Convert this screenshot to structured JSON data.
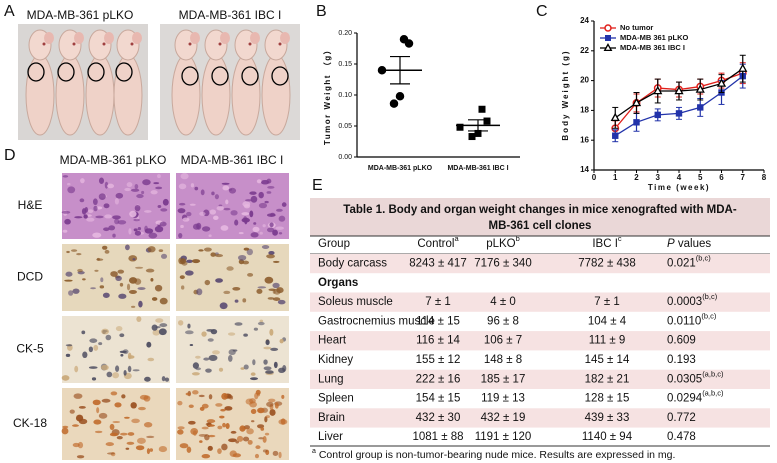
{
  "panels": {
    "a": {
      "label": "A",
      "titles": [
        "MDA-MB-361 pLKO",
        "MDA-MB-361 IBC I"
      ]
    },
    "b": {
      "label": "B"
    },
    "c": {
      "label": "C"
    },
    "d": {
      "label": "D",
      "columns": [
        "MDA-MB-361 pLKO",
        "MDA-MB-361 IBC I"
      ],
      "rows": [
        "H&E",
        "DCD",
        "CK-5",
        "CK-18"
      ]
    },
    "e": {
      "label": "E"
    }
  },
  "chart_data": [
    {
      "type": "strip",
      "ylabel": "Tumor Weight （g）",
      "categories": [
        "MDA-MB-361 pLKO",
        "MDA-MB-361 IBC I"
      ],
      "values": [
        [
          0.19,
          0.183,
          0.14,
          0.098,
          0.086
        ],
        [
          0.077,
          0.058,
          0.048,
          0.038,
          0.033
        ]
      ],
      "means": [
        0.14,
        0.051
      ],
      "errors": [
        0.022,
        0.009
      ],
      "markers": [
        "circle",
        "square"
      ],
      "color": "#000000",
      "ylim": [
        0,
        0.2
      ],
      "yticks": [
        {
          "value": 0,
          "label": "0.00"
        },
        {
          "value": 0.05,
          "label": "0.05"
        },
        {
          "value": 0.1,
          "label": "0.10"
        },
        {
          "value": 0.15,
          "label": "0.15"
        },
        {
          "value": 0.2,
          "label": "0.20"
        }
      ]
    },
    {
      "type": "line",
      "ylabel": "Body Weight (g)",
      "xlabel": "Time (week)",
      "x": [
        1,
        2,
        3,
        4,
        5,
        6,
        7
      ],
      "series": [
        {
          "name": "No tumor",
          "color": "#e0201b",
          "marker": "circle",
          "values": [
            16.8,
            18.5,
            19.5,
            19.4,
            19.6,
            20.0,
            20.5
          ],
          "errors": [
            0.5,
            0.6,
            0.6,
            0.5,
            0.5,
            0.5,
            0.7
          ]
        },
        {
          "name": "MDA-MB 361 pLKO",
          "color": "#2233aa",
          "marker": "square",
          "values": [
            16.3,
            17.2,
            17.7,
            17.8,
            18.2,
            19.2,
            20.3
          ],
          "errors": [
            0.4,
            0.6,
            0.4,
            0.4,
            0.6,
            0.8,
            0.8
          ]
        },
        {
          "name": "MDA-MB 361 IBC I",
          "color": "#000000",
          "marker": "triangle",
          "values": [
            17.5,
            18.5,
            19.3,
            19.3,
            19.4,
            19.8,
            20.8
          ],
          "errors": [
            0.7,
            0.7,
            0.8,
            0.6,
            0.7,
            0.6,
            0.9
          ]
        }
      ],
      "xlim": [
        0,
        8
      ],
      "xticks": [
        0,
        1,
        2,
        3,
        4,
        5,
        6,
        7,
        8
      ],
      "ylim": [
        14,
        24
      ],
      "yticks": [
        14,
        16,
        18,
        20,
        22,
        24
      ],
      "legend": "upper left"
    }
  ],
  "table": {
    "title": [
      "Table 1. Body and organ weight changes in mice xenografted with MDA-",
      "MB-361 cell clones"
    ],
    "header": [
      "Group",
      {
        "text": "Control",
        "sup": "a"
      },
      {
        "text": "pLKO",
        "sup": "b"
      },
      {
        "text": "IBC I",
        "sup": "c"
      },
      {
        "italic": "P",
        "text": " values"
      }
    ],
    "rows": [
      [
        "Body carcass",
        "8243 ± 417",
        "7176 ± 340",
        "7782 ± 438",
        {
          "text": "0.021",
          "sup": "(b,c)"
        }
      ],
      [
        "Organs"
      ],
      [
        "Soleus muscle",
        "7 ± 1",
        "4 ± 0",
        "7 ± 1",
        {
          "text": "0.0003",
          "sup": "(b,c)"
        }
      ],
      [
        "Gastrocnemius muscle",
        "114 ± 15",
        "96 ± 8",
        "104 ± 4",
        {
          "text": "0.0110",
          "sup": "(b,c)"
        }
      ],
      [
        "Heart",
        "116 ± 14",
        "106 ± 7",
        "111 ± 9",
        {
          "text": "0.609"
        }
      ],
      [
        "Kidney",
        "155 ± 12",
        "148 ± 8",
        "145 ± 14",
        {
          "text": "0.193"
        }
      ],
      [
        "Lung",
        "222 ± 16",
        "185 ± 17",
        "182 ± 21",
        {
          "text": "0.0305",
          "sup": "(a,b,c)"
        }
      ],
      [
        "Spleen",
        "154 ± 15",
        "119 ± 13",
        "128 ± 15",
        {
          "text": "0.0294",
          "sup": "(a,b,c)"
        }
      ],
      [
        "Brain",
        "432 ± 30",
        "432 ± 19",
        "439 ± 33",
        {
          "text": "0.772"
        }
      ],
      [
        "Liver",
        "1081 ± 88",
        "1191 ± 120",
        "1140 ± 94",
        {
          "text": "0.478"
        }
      ]
    ],
    "footnote": {
      "sup": "a",
      "text": " Control group is non-tumor-bearing nude mice. Results are expressed in mg."
    }
  }
}
